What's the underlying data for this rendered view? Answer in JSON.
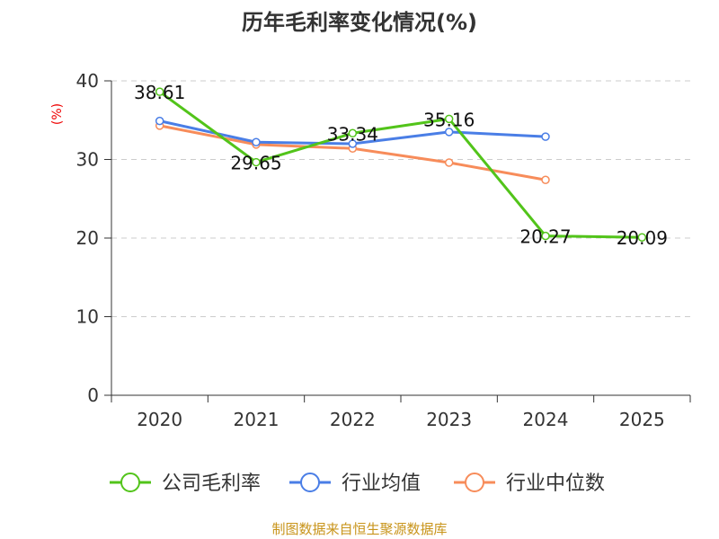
{
  "chart_data": {
    "type": "line",
    "title": "历年毛利率变化情况(%)",
    "ylabel": "(%)",
    "xlabel": "",
    "categories": [
      "2020",
      "2021",
      "2022",
      "2023",
      "2024",
      "2025"
    ],
    "ylim": [
      0,
      40
    ],
    "yticks": [
      "0",
      "10",
      "20",
      "30",
      "40"
    ],
    "grid": true,
    "legend_position": "bottom",
    "series": [
      {
        "name": "公司毛利率",
        "color": "#52c41a",
        "values": [
          38.61,
          29.65,
          33.34,
          35.16,
          20.27,
          20.09
        ],
        "labels": [
          "38.61",
          "29.65",
          "33.34",
          "35.16",
          "20.27",
          "20.09"
        ]
      },
      {
        "name": "行业均值",
        "color": "#4a7ee6",
        "values": [
          34.9,
          32.2,
          32.0,
          33.5,
          32.9,
          null
        ]
      },
      {
        "name": "行业中位数",
        "color": "#f78c5a",
        "values": [
          34.3,
          31.9,
          31.4,
          29.6,
          27.4,
          null
        ]
      }
    ],
    "source": "制图数据来自恒生聚源数据库"
  }
}
